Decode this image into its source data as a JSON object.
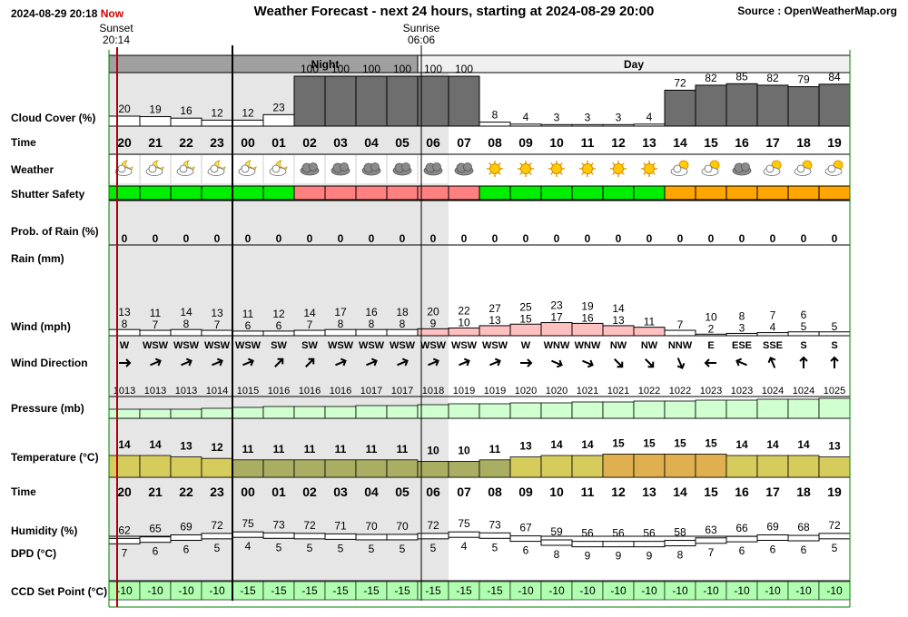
{
  "header": {
    "timestamp": "2024-08-29 20:18",
    "now_label": "Now",
    "title": "Weather Forecast - next 24 hours, starting at 2024-08-29 20:00",
    "source": "Source : OpenWeatherMap.org"
  },
  "events": {
    "sunset_label": "Sunset",
    "sunset_time": "20:14",
    "sunrise_label": "Sunrise",
    "sunrise_time": "06:06"
  },
  "period_labels": {
    "night": "Night",
    "day": "Day"
  },
  "row_labels": {
    "cloud": "Cloud Cover (%)",
    "time": "Time",
    "weather": "Weather",
    "shutter": "Shutter Safety",
    "rain_prob": "Prob. of Rain (%)",
    "rain": "Rain (mm)",
    "wind": "Wind (mph)",
    "wind_dir": "Wind Direction",
    "pressure": "Pressure (mb)",
    "temperature": "Temperature (°C)",
    "time2": "Time",
    "humidity": "Humidity (%)",
    "dpd": "DPD (°C)",
    "ccd": "CCD Set Point (°C)"
  },
  "colors": {
    "cloud_bar": "#6e6e6e",
    "night_shade": "#e6e6e6",
    "header_gray": "#a0a0a0",
    "shutter_safe": "#00ee00",
    "shutter_unsafe": "#ff8080",
    "shutter_marginal": "#ffa500",
    "wind_calm": "#ffffff",
    "wind_breezy": "#ffc0c0",
    "pressure_fill": "#d0ffd0",
    "temp_cool": "#a9ae62",
    "temp_mild": "#d6cc5c",
    "temp_warm": "#e0b050",
    "ccd_fill": "#b0ffb0",
    "sunset_line": "#b00000",
    "grid_green": "#008000"
  },
  "chart_data": {
    "type": "table",
    "hours": [
      "20",
      "21",
      "22",
      "23",
      "00",
      "01",
      "02",
      "03",
      "04",
      "05",
      "06",
      "07",
      "08",
      "09",
      "10",
      "11",
      "12",
      "13",
      "14",
      "15",
      "16",
      "17",
      "18",
      "19"
    ],
    "cloud_cover": [
      20,
      19,
      16,
      12,
      12,
      23,
      100,
      100,
      100,
      100,
      100,
      100,
      8,
      4,
      3,
      3,
      3,
      4,
      72,
      82,
      85,
      82,
      79,
      84
    ],
    "weather_icons": [
      "night-partly-cloudy-icon",
      "night-partly-cloudy-icon",
      "night-partly-cloudy-icon",
      "night-partly-cloudy-icon",
      "night-partly-cloudy-icon",
      "night-partly-cloudy-icon",
      "overcast-icon",
      "overcast-icon",
      "overcast-icon",
      "overcast-icon",
      "overcast-icon",
      "overcast-icon",
      "sun-icon",
      "sun-icon",
      "sun-icon",
      "sun-icon",
      "sun-icon",
      "sun-icon",
      "partly-cloudy-icon",
      "partly-cloudy-icon",
      "overcast-icon",
      "partly-cloudy-icon",
      "partly-cloudy-icon",
      "partly-cloudy-icon"
    ],
    "shutter_safety": [
      "safe",
      "safe",
      "safe",
      "safe",
      "safe",
      "safe",
      "unsafe",
      "unsafe",
      "unsafe",
      "unsafe",
      "unsafe",
      "unsafe",
      "safe",
      "safe",
      "safe",
      "safe",
      "safe",
      "safe",
      "marginal",
      "marginal",
      "marginal",
      "marginal",
      "marginal",
      "marginal"
    ],
    "rain_probability": [
      0,
      0,
      0,
      0,
      0,
      0,
      0,
      0,
      0,
      0,
      0,
      0,
      0,
      0,
      0,
      0,
      0,
      0,
      0,
      0,
      0,
      0,
      0,
      0
    ],
    "rain_mm": [
      0,
      0,
      0,
      0,
      0,
      0,
      0,
      0,
      0,
      0,
      0,
      0,
      0,
      0,
      0,
      0,
      0,
      0,
      0,
      0,
      0,
      0,
      0,
      0
    ],
    "wind_gust": [
      13,
      11,
      14,
      13,
      11,
      12,
      14,
      17,
      16,
      18,
      20,
      22,
      27,
      25,
      23,
      19,
      14,
      null,
      null,
      10,
      8,
      7,
      6,
      null
    ],
    "wind_speed": [
      8,
      7,
      8,
      7,
      6,
      6,
      7,
      8,
      8,
      8,
      9,
      10,
      13,
      15,
      17,
      16,
      13,
      11,
      7,
      2,
      3,
      4,
      5,
      5
    ],
    "wind_direction": [
      "W",
      "WSW",
      "WSW",
      "WSW",
      "WSW",
      "SW",
      "SW",
      "WSW",
      "WSW",
      "WSW",
      "WSW",
      "WSW",
      "WSW",
      "W",
      "WNW",
      "WNW",
      "NW",
      "NW",
      "NNW",
      "E",
      "ESE",
      "SSE",
      "S",
      "S"
    ],
    "pressure": [
      1013,
      1013,
      1013,
      1014,
      1015,
      1016,
      1016,
      1016,
      1017,
      1017,
      1018,
      1019,
      1019,
      1020,
      1020,
      1021,
      1021,
      1022,
      1022,
      1023,
      1023,
      1024,
      1024,
      1025
    ],
    "temperature": [
      14,
      14,
      13,
      12,
      11,
      11,
      11,
      11,
      11,
      11,
      10,
      10,
      11,
      13,
      14,
      14,
      15,
      15,
      15,
      15,
      14,
      14,
      14,
      13
    ],
    "humidity": [
      62,
      65,
      69,
      72,
      75,
      73,
      72,
      71,
      70,
      70,
      72,
      75,
      73,
      67,
      59,
      56,
      56,
      56,
      58,
      63,
      66,
      69,
      68,
      72
    ],
    "dew_point_depression": [
      7,
      6,
      6,
      5,
      4,
      5,
      5,
      5,
      5,
      5,
      5,
      4,
      5,
      6,
      8,
      9,
      9,
      9,
      8,
      7,
      6,
      6,
      6,
      5
    ],
    "ccd_set_point": [
      -10,
      -10,
      -10,
      -10,
      -15,
      -15,
      -15,
      -15,
      -15,
      -15,
      -15,
      -15,
      -15,
      -10,
      -10,
      -10,
      -10,
      -10,
      -10,
      -10,
      -10,
      -10,
      -10,
      -10
    ]
  }
}
